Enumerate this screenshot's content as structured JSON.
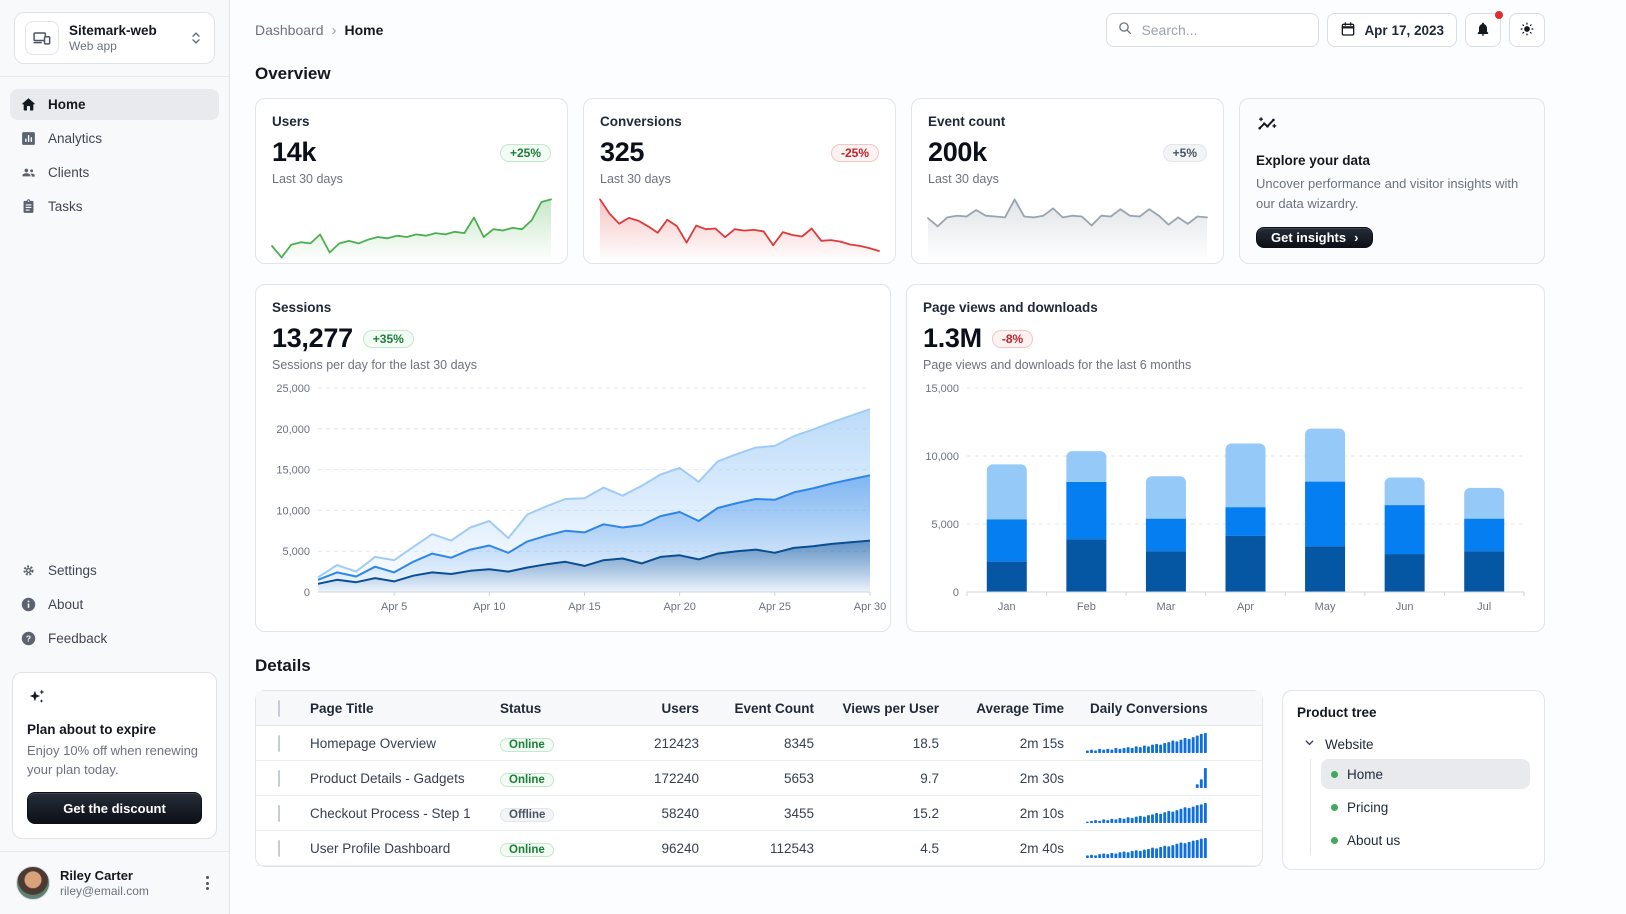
{
  "colors": {
    "accent_dark": "#0557a4",
    "accent": "#047ef0",
    "accent_light": "#94c9f8",
    "success": "#4caf50",
    "error": "#df3a3a",
    "neutral": "#9aa4b0",
    "spark_bar": "#0f6fde"
  },
  "sidebar": {
    "app": {
      "name": "Sitemark-web",
      "type": "Web app"
    },
    "menu": [
      {
        "label": "Home"
      },
      {
        "label": "Analytics"
      },
      {
        "label": "Clients"
      },
      {
        "label": "Tasks"
      }
    ],
    "secondary": [
      {
        "label": "Settings"
      },
      {
        "label": "About"
      },
      {
        "label": "Feedback"
      }
    ],
    "plan_card": {
      "title": "Plan about to expire",
      "body": "Enjoy 10% off when renewing your plan today.",
      "button": "Get the discount"
    },
    "user": {
      "name": "Riley Carter",
      "email": "riley@email.com"
    }
  },
  "header": {
    "breadcrumb": [
      "Dashboard",
      "Home"
    ],
    "search_placeholder": "Search...",
    "date": "Apr 17, 2023"
  },
  "overview": {
    "title": "Overview",
    "stat_cards": [
      {
        "title": "Users",
        "value": "14k",
        "delta": "+25%",
        "caption": "Last 30 days"
      },
      {
        "title": "Conversions",
        "value": "325",
        "delta": "-25%",
        "caption": "Last 30 days"
      },
      {
        "title": "Event count",
        "value": "200k",
        "delta": "+5%",
        "caption": "Last 30 days"
      }
    ],
    "explore_card": {
      "title": "Explore your data",
      "body": "Uncover performance and visitor insights with our data wizardry.",
      "button": "Get insights"
    }
  },
  "sessions": {
    "title": "Sessions",
    "value": "13,277",
    "delta": "+35%",
    "caption": "Sessions per day for the last 30 days"
  },
  "pageviews": {
    "title": "Page views and downloads",
    "value": "1.3M",
    "delta": "-8%",
    "caption": "Page views and downloads for the last 6 months"
  },
  "details": {
    "title": "Details",
    "columns": [
      "Page Title",
      "Status",
      "Users",
      "Event Count",
      "Views per User",
      "Average Time",
      "Daily Conversions"
    ],
    "rows": [
      {
        "title": "Homepage Overview",
        "status": "Online",
        "users": "212423",
        "events": "8345",
        "views": "18.5",
        "time": "2m 15s"
      },
      {
        "title": "Product Details - Gadgets",
        "status": "Online",
        "users": "172240",
        "events": "5653",
        "views": "9.7",
        "time": "2m 30s"
      },
      {
        "title": "Checkout Process - Step 1",
        "status": "Offline",
        "users": "58240",
        "events": "3455",
        "views": "15.2",
        "time": "2m 10s"
      },
      {
        "title": "User Profile Dashboard",
        "status": "Online",
        "users": "96240",
        "events": "112543",
        "views": "4.5",
        "time": "2m 40s"
      }
    ]
  },
  "product_tree": {
    "title": "Product tree",
    "root": "Website",
    "children": [
      {
        "label": "Home"
      },
      {
        "label": "Pricing"
      },
      {
        "label": "About us"
      }
    ]
  },
  "chart_data": [
    {
      "id": "users-sparkline",
      "type": "line",
      "color": "#4caf50",
      "values": [
        200,
        24,
        220,
        260,
        240,
        380,
        100,
        240,
        280,
        240,
        300,
        340,
        320,
        360,
        340,
        380,
        360,
        400,
        380,
        420,
        400,
        640,
        340,
        460,
        440,
        480,
        460,
        600,
        880,
        920
      ]
    },
    {
      "id": "conversions-sparkline",
      "type": "line",
      "color": "#df3a3a",
      "values": [
        1640,
        1250,
        970,
        1130,
        1050,
        900,
        720,
        1080,
        900,
        450,
        920,
        820,
        840,
        600,
        820,
        780,
        800,
        760,
        380,
        740,
        660,
        620,
        840,
        500,
        520,
        480,
        400,
        360,
        300,
        220
      ]
    },
    {
      "id": "eventcount-sparkline",
      "type": "line",
      "color": "#9aa4b0",
      "values": [
        500,
        400,
        510,
        530,
        520,
        600,
        530,
        520,
        510,
        730,
        520,
        510,
        530,
        620,
        510,
        530,
        520,
        410,
        530,
        520,
        610,
        530,
        520,
        610,
        530,
        420,
        510,
        430,
        520,
        510
      ]
    },
    {
      "id": "sessions-chart",
      "type": "area",
      "stacked": true,
      "title": "Sessions per day for the last 30 days",
      "ylim": [
        0,
        25000
      ],
      "y_tick_labels": [
        "0",
        "5,000",
        "10,000",
        "15,000",
        "20,000",
        "25,000"
      ],
      "x_tick_positions": [
        4,
        9,
        14,
        19,
        24,
        29
      ],
      "x_tick_labels": [
        "Apr 5",
        "Apr 10",
        "Apr 15",
        "Apr 20",
        "Apr 25",
        "Apr 30"
      ],
      "series": [
        {
          "name": "bottom",
          "color": "#0a4e94",
          "values": [
            1000,
            1500,
            1200,
            1700,
            1300,
            2000,
            2400,
            2200,
            2600,
            2800,
            2500,
            3000,
            3400,
            3700,
            3200,
            3900,
            4100,
            3500,
            4300,
            4500,
            4000,
            4700,
            5000,
            5200,
            4800,
            5400,
            5600,
            5900,
            6100,
            6300
          ]
        },
        {
          "name": "middle",
          "color": "#2f86e8",
          "values": [
            500,
            900,
            700,
            1400,
            1100,
            1700,
            2300,
            2000,
            2600,
            2900,
            2300,
            3200,
            3500,
            3800,
            4100,
            4400,
            3800,
            4700,
            5000,
            5300,
            4700,
            5600,
            5900,
            6200,
            6500,
            6800,
            7100,
            7400,
            7700,
            8000
          ]
        },
        {
          "name": "top",
          "color": "#9fccf7",
          "values": [
            300,
            900,
            600,
            1200,
            1500,
            1800,
            2400,
            2100,
            2700,
            3000,
            1800,
            3300,
            3600,
            3900,
            4200,
            4500,
            3900,
            4800,
            5100,
            5400,
            4800,
            5700,
            6000,
            6300,
            6600,
            6900,
            7200,
            7500,
            7800,
            8100
          ]
        }
      ]
    },
    {
      "id": "pageviews-chart",
      "type": "bar",
      "stacked": true,
      "title": "Page views and downloads for the last 6 months",
      "categories": [
        "Jan",
        "Feb",
        "Mar",
        "Apr",
        "May",
        "Jun",
        "Jul"
      ],
      "ylim": [
        0,
        15000
      ],
      "y_tick_labels": [
        "0",
        "5,000",
        "10,000",
        "15,000"
      ],
      "series": [
        {
          "name": "bottom",
          "color": "#0557a4",
          "values": [
            2234,
            3872,
            2998,
            4125,
            3357,
            2789,
            2998
          ]
        },
        {
          "name": "middle",
          "color": "#047ef0",
          "values": [
            3098,
            4215,
            2384,
            2101,
            4752,
            3593,
            2384
          ]
        },
        {
          "name": "top",
          "color": "#94c9f8",
          "values": [
            4051,
            2275,
            3129,
            4693,
            3904,
            2038,
            2275
          ]
        }
      ]
    },
    {
      "id": "daily-conversions",
      "type": "bar",
      "color": "#0f6fde",
      "rows": [
        [
          3,
          4,
          3,
          5,
          4,
          5,
          4,
          6,
          5,
          6,
          7,
          6,
          8,
          7,
          9,
          8,
          10,
          11,
          10,
          12,
          13,
          15,
          14,
          16,
          18,
          17,
          19,
          21,
          23,
          24
        ],
        [
          0,
          0,
          0,
          0,
          0,
          0,
          0,
          0,
          0,
          0,
          0,
          0,
          0,
          0,
          0,
          0,
          0,
          0,
          0,
          0,
          0,
          0,
          0,
          0,
          0,
          0,
          0,
          3,
          7,
          16
        ],
        [
          2,
          3,
          4,
          3,
          5,
          4,
          6,
          5,
          7,
          6,
          8,
          7,
          9,
          10,
          9,
          11,
          12,
          14,
          13,
          15,
          17,
          16,
          18,
          20,
          22,
          21,
          23,
          25,
          26,
          28
        ],
        [
          4,
          5,
          4,
          6,
          7,
          6,
          8,
          7,
          9,
          10,
          9,
          11,
          12,
          11,
          13,
          14,
          16,
          15,
          17,
          19,
          18,
          20,
          22,
          24,
          23,
          25,
          27,
          28,
          30,
          31
        ]
      ]
    }
  ]
}
